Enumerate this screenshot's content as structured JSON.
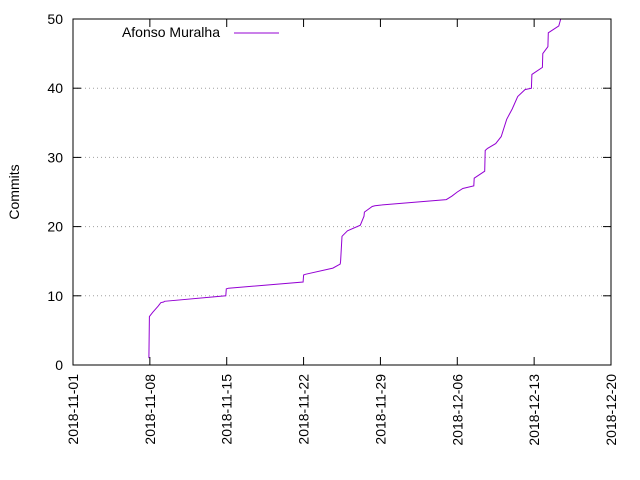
{
  "chart_data": {
    "type": "line",
    "title": "",
    "xlabel": "",
    "ylabel": "Commits",
    "xlim": [
      "2018-11-01",
      "2018-12-20"
    ],
    "ylim": [
      0,
      50
    ],
    "x_ticks": [
      "2018-11-01",
      "2018-11-08",
      "2018-11-15",
      "2018-11-22",
      "2018-11-29",
      "2018-12-06",
      "2018-12-13",
      "2018-12-20"
    ],
    "y_ticks": [
      0,
      10,
      20,
      30,
      40,
      50
    ],
    "grid": "horizontal dotted",
    "legend": "top-left",
    "series": [
      {
        "name": "Afonso Muralha",
        "color": "#9400d3",
        "x": [
          "2018-11-07 22:00",
          "2018-11-07 23:00",
          "2018-11-08 06:00",
          "2018-11-08 18:00",
          "2018-11-09 00:00",
          "2018-11-09 06:00",
          "2018-11-09 08:00",
          "2018-11-14 22:00",
          "2018-11-14 23:00",
          "2018-11-15 04:00",
          "2018-11-21 23:00",
          "2018-11-22 00:00",
          "2018-11-22 04:00",
          "2018-11-24 16:00",
          "2018-11-25 08:00",
          "2018-11-25 09:00",
          "2018-11-25 12:00",
          "2018-11-26 00:00",
          "2018-11-27 04:00",
          "2018-11-27 12:00",
          "2018-11-27 13:00",
          "2018-11-28 06:00",
          "2018-11-28 12:00",
          "2018-11-29 00:00",
          "2018-12-05 00:00",
          "2018-12-05 12:00",
          "2018-12-06 00:00",
          "2018-12-06 12:00",
          "2018-12-07 12:00",
          "2018-12-07 13:00",
          "2018-12-08 12:00",
          "2018-12-08 13:00",
          "2018-12-08 18:00",
          "2018-12-09 12:00",
          "2018-12-10 00:00",
          "2018-12-10 12:00",
          "2018-12-11 00:00",
          "2018-12-11 12:00",
          "2018-12-12 04:00",
          "2018-12-12 18:00",
          "2018-12-12 19:00",
          "2018-12-13 18:00",
          "2018-12-13 19:00",
          "2018-12-14 06:00",
          "2018-12-14 07:00",
          "2018-12-15 06:00",
          "2018-12-15 10:00"
        ],
        "y": [
          1,
          7,
          7.6,
          8.5,
          9,
          9.1,
          9.2,
          10,
          11,
          11.1,
          12,
          13,
          13.1,
          14,
          14.6,
          15,
          18.6,
          19.4,
          20.2,
          21.5,
          22.1,
          22.9,
          23,
          23.1,
          23.9,
          24.4,
          25,
          25.5,
          25.9,
          27,
          28,
          31,
          31.3,
          32,
          33,
          35.5,
          37,
          38.8,
          39.8,
          40,
          42,
          43,
          45,
          46,
          48,
          49,
          50
        ]
      }
    ]
  }
}
